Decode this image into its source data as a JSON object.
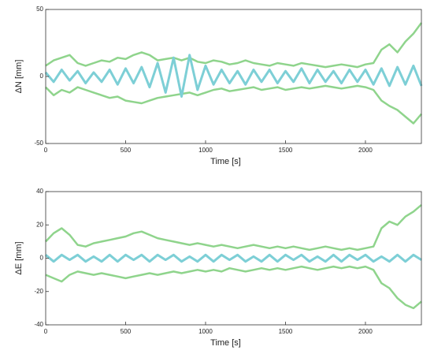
{
  "chart_data": [
    {
      "type": "line",
      "ylabel": "ΔN [mm]",
      "xlabel": "Time [s]",
      "x": [
        0,
        50,
        100,
        150,
        200,
        250,
        300,
        350,
        400,
        450,
        500,
        550,
        600,
        650,
        700,
        750,
        800,
        850,
        900,
        950,
        1000,
        1050,
        1100,
        1150,
        1200,
        1250,
        1300,
        1350,
        1400,
        1450,
        1500,
        1550,
        1600,
        1650,
        1700,
        1750,
        1800,
        1850,
        1900,
        1950,
        2000,
        2050,
        2100,
        2150,
        2200,
        2250,
        2300,
        2350
      ],
      "xlim": [
        0,
        2350
      ],
      "xticks": [
        0,
        500,
        1000,
        1500,
        2000
      ],
      "ylim": [
        -50,
        50
      ],
      "yticks": [
        -50,
        0,
        50
      ],
      "series": [
        {
          "color": "#8fd48c",
          "values": [
            8,
            12,
            14,
            16,
            10,
            8,
            10,
            12,
            11,
            14,
            13,
            16,
            18,
            16,
            12,
            13,
            14,
            12,
            14,
            11,
            10,
            12,
            11,
            9,
            10,
            12,
            10,
            9,
            8,
            10,
            9,
            8,
            10,
            9,
            8,
            7,
            8,
            9,
            8,
            7,
            9,
            10,
            20,
            24,
            18,
            26,
            32,
            40
          ]
        },
        {
          "color": "#8fd48c",
          "values": [
            -8,
            -14,
            -10,
            -12,
            -8,
            -10,
            -12,
            -14,
            -16,
            -15,
            -18,
            -19,
            -20,
            -18,
            -16,
            -15,
            -14,
            -13,
            -12,
            -14,
            -12,
            -10,
            -9,
            -11,
            -10,
            -9,
            -8,
            -10,
            -9,
            -8,
            -10,
            -9,
            -8,
            -9,
            -8,
            -7,
            -8,
            -9,
            -8,
            -7,
            -8,
            -10,
            -18,
            -22,
            -25,
            -30,
            -35,
            -28
          ]
        },
        {
          "color": "#7dcfd6",
          "values": [
            3,
            -4,
            5,
            -3,
            4,
            -5,
            3,
            -4,
            5,
            -6,
            6,
            -5,
            7,
            -8,
            10,
            -12,
            14,
            -15,
            16,
            -10,
            8,
            -6,
            5,
            -5,
            4,
            -6,
            5,
            -4,
            5,
            -5,
            4,
            -4,
            6,
            -5,
            5,
            -4,
            4,
            -5,
            5,
            -4,
            5,
            -6,
            6,
            -7,
            7,
            -6,
            8,
            -7
          ]
        }
      ]
    },
    {
      "type": "line",
      "ylabel": "ΔE [mm]",
      "xlabel": "Time [s]",
      "x": [
        0,
        50,
        100,
        150,
        200,
        250,
        300,
        350,
        400,
        450,
        500,
        550,
        600,
        650,
        700,
        750,
        800,
        850,
        900,
        950,
        1000,
        1050,
        1100,
        1150,
        1200,
        1250,
        1300,
        1350,
        1400,
        1450,
        1500,
        1550,
        1600,
        1650,
        1700,
        1750,
        1800,
        1850,
        1900,
        1950,
        2000,
        2050,
        2100,
        2150,
        2200,
        2250,
        2300,
        2350
      ],
      "xlim": [
        0,
        2350
      ],
      "xticks": [
        0,
        500,
        1000,
        1500,
        2000
      ],
      "ylim": [
        -40,
        40
      ],
      "yticks": [
        -40,
        -20,
        0,
        20,
        40
      ],
      "series": [
        {
          "color": "#8fd48c",
          "values": [
            10,
            15,
            18,
            14,
            8,
            7,
            9,
            10,
            11,
            12,
            13,
            15,
            16,
            14,
            12,
            11,
            10,
            9,
            8,
            9,
            8,
            7,
            8,
            7,
            6,
            7,
            8,
            7,
            6,
            7,
            6,
            7,
            6,
            5,
            6,
            7,
            6,
            5,
            6,
            5,
            6,
            7,
            18,
            22,
            20,
            25,
            28,
            32
          ]
        },
        {
          "color": "#8fd48c",
          "values": [
            -10,
            -12,
            -14,
            -10,
            -8,
            -9,
            -10,
            -9,
            -10,
            -11,
            -12,
            -11,
            -10,
            -9,
            -10,
            -9,
            -8,
            -9,
            -8,
            -7,
            -8,
            -7,
            -8,
            -6,
            -7,
            -8,
            -7,
            -6,
            -7,
            -6,
            -7,
            -6,
            -5,
            -6,
            -7,
            -6,
            -5,
            -6,
            -5,
            -6,
            -5,
            -7,
            -15,
            -18,
            -24,
            -28,
            -30,
            -26
          ]
        },
        {
          "color": "#7dcfd6",
          "values": [
            2,
            -2,
            2,
            -1,
            2,
            -2,
            1,
            -2,
            2,
            -2,
            2,
            -1,
            2,
            -2,
            2,
            -1,
            2,
            -2,
            1,
            -2,
            2,
            -2,
            2,
            -1,
            2,
            -2,
            1,
            -2,
            2,
            -2,
            2,
            -1,
            2,
            -2,
            1,
            -2,
            2,
            -2,
            2,
            -1,
            2,
            -2,
            1,
            -2,
            2,
            -2,
            2,
            -1
          ]
        }
      ]
    }
  ]
}
